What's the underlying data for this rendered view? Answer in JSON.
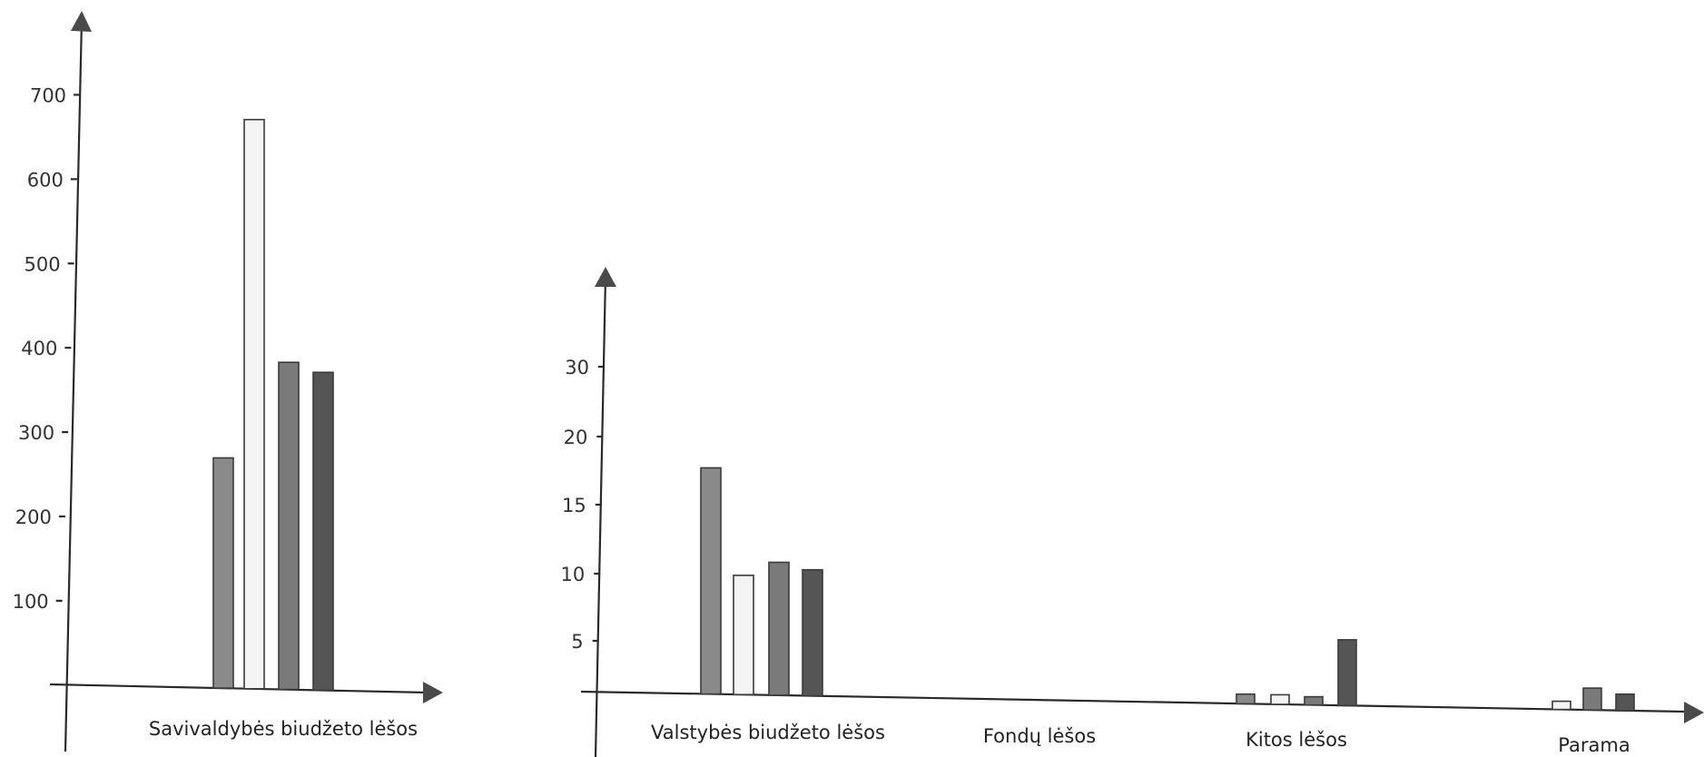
{
  "chart_data": [
    {
      "type": "bar",
      "categories": [
        "Savivaldybės biudžeto lėšos"
      ],
      "series": [
        {
          "values": [
            273
          ],
          "color": "#8a8a8a"
        },
        {
          "values": [
            675
          ],
          "color": "#f4f4f4"
        },
        {
          "values": [
            388
          ],
          "color": "#7a7a7a"
        },
        {
          "values": [
            377
          ],
          "color": "#555555"
        }
      ],
      "yticks": [
        100,
        200,
        300,
        400,
        500,
        600,
        700
      ],
      "ylim": [
        0,
        780
      ],
      "grid": false
    },
    {
      "type": "bar",
      "categories": [
        "Valstybės biudžeto lėšos",
        "Fondų lėšos",
        "Kitos lėšos",
        "Parama"
      ],
      "series": [
        {
          "values": [
            16.5,
            0,
            0.7,
            0
          ],
          "color": "#8a8a8a"
        },
        {
          "values": [
            8.7,
            0,
            0.7,
            0.6
          ],
          "color": "#f4f4f4"
        },
        {
          "values": [
            9.7,
            0,
            0.6,
            1.6
          ],
          "color": "#7a7a7a"
        },
        {
          "values": [
            9.2,
            0,
            4.8,
            1.2
          ],
          "color": "#555555"
        }
      ],
      "yticks": [
        5,
        10,
        15,
        20,
        30
      ],
      "grid": false
    }
  ]
}
